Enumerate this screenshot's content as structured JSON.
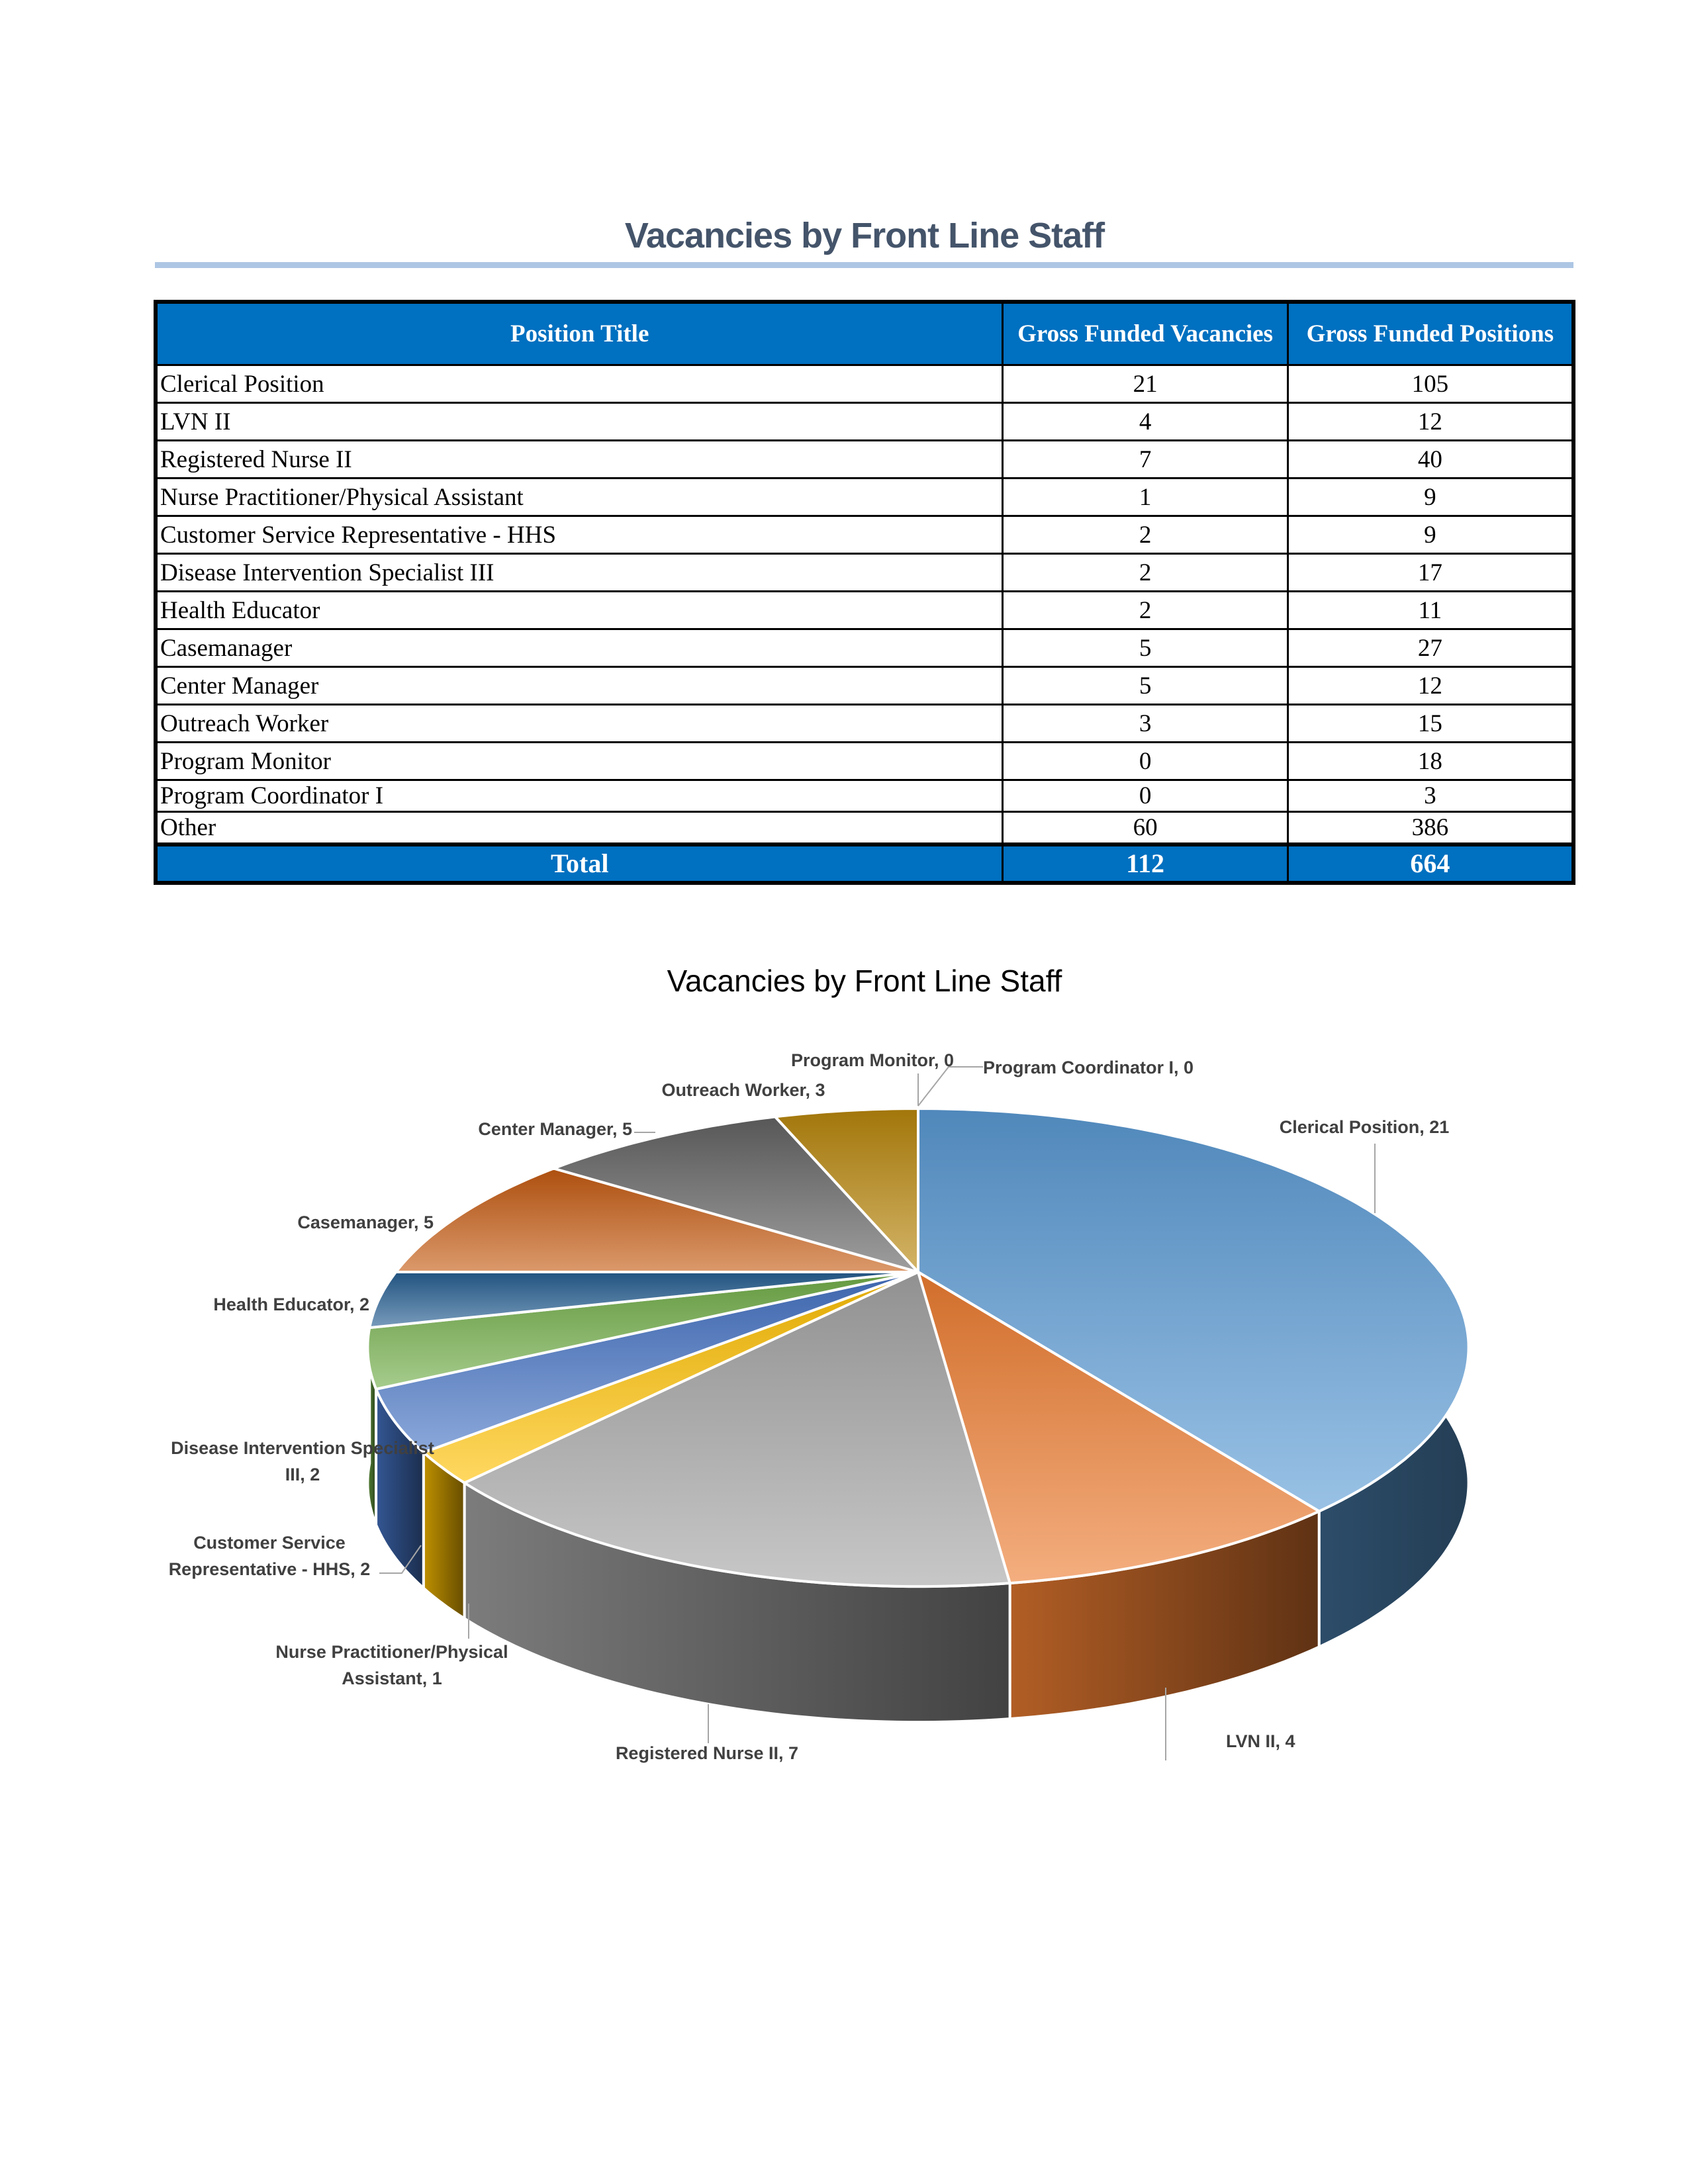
{
  "document": {
    "title": "Vacancies by Front Line Staff"
  },
  "table": {
    "headers": [
      "Position Title",
      "Gross Funded Vacancies",
      "Gross Funded Positions"
    ],
    "rows": [
      {
        "title": "Clerical Position",
        "vacancies": "21",
        "positions": "105"
      },
      {
        "title": "LVN II",
        "vacancies": "4",
        "positions": "12"
      },
      {
        "title": "Registered Nurse II",
        "vacancies": "7",
        "positions": "40"
      },
      {
        "title": "Nurse Practitioner/Physical Assistant",
        "vacancies": "1",
        "positions": "9"
      },
      {
        "title": "Customer Service Representative - HHS",
        "vacancies": "2",
        "positions": "9"
      },
      {
        "title": "Disease Intervention Specialist III",
        "vacancies": "2",
        "positions": "17"
      },
      {
        "title": "Health Educator",
        "vacancies": "2",
        "positions": "11"
      },
      {
        "title": "Casemanager",
        "vacancies": "5",
        "positions": "27"
      },
      {
        "title": "Center Manager",
        "vacancies": "5",
        "positions": "12"
      },
      {
        "title": "Outreach Worker",
        "vacancies": "3",
        "positions": "15"
      },
      {
        "title": "Program Monitor",
        "vacancies": "0",
        "positions": "18"
      },
      {
        "title": "Program Coordinator I",
        "vacancies": "0",
        "positions": "3"
      },
      {
        "title": "Other",
        "vacancies": "60",
        "positions": "386"
      }
    ],
    "total": {
      "label": "Total",
      "vacancies": "112",
      "positions": "664"
    },
    "header_color": "#0070c0"
  },
  "chart_data": {
    "type": "pie",
    "style": "3d",
    "title": "Vacancies by Front Line Staff",
    "categories": [
      "Clerical Position",
      "LVN II",
      "Registered Nurse II",
      "Nurse Practitioner/Physical Assistant",
      "Customer Service Representative - HHS",
      "Disease Intervention Specialist III",
      "Health Educator",
      "Casemanager",
      "Center Manager",
      "Outreach Worker",
      "Program Monitor",
      "Program Coordinator I"
    ],
    "values": [
      21,
      4,
      7,
      1,
      2,
      2,
      2,
      5,
      5,
      3,
      0,
      0
    ],
    "data_labels": [
      "Clerical Position, 21",
      "LVN II, 4",
      "Registered Nurse II, 7",
      "Nurse Practitioner/Physical Assistant, 1",
      "Customer Service Representative - HHS, 2",
      "Disease Intervention Specialist III, 2",
      "Health Educator, 2",
      "Casemanager, 5",
      "Center Manager, 5",
      "Outreach Worker, 3",
      "Program Monitor, 0",
      "Program Coordinator I, 0"
    ],
    "colors": [
      "#5b9bd5",
      "#ed7d31",
      "#a5a5a5",
      "#ffc000",
      "#4472c4",
      "#70ad47",
      "#255e91",
      "#c55a11",
      "#636363",
      "#b8860b",
      "#a5a5a5",
      "#ffc000"
    ],
    "legend": "none"
  }
}
